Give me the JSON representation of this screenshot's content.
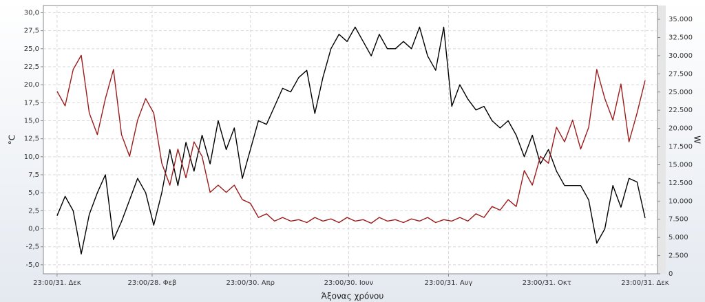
{
  "chart_data": {
    "type": "line",
    "xlabel": "Άξονας χρόνου",
    "ylabel": "°C",
    "y2label": "W",
    "xlim": [
      -8.5,
      372.7
    ],
    "xticks": [
      {
        "value": 0,
        "label": "23:00/31. Δεκ"
      },
      {
        "value": 59,
        "label": "23:00/28. Φεβ"
      },
      {
        "value": 120,
        "label": "23:00/30. Απρ"
      },
      {
        "value": 181,
        "label": "23:00/30. Ιουν"
      },
      {
        "value": 243,
        "label": "23:00/31. Αυγ"
      },
      {
        "value": 304,
        "label": "23:00/31. Οκτ"
      },
      {
        "value": 365,
        "label": "23:00/31. Δεκ"
      }
    ],
    "ylim": [
      -6.25,
      31
    ],
    "yticks": [
      {
        "value": -5,
        "label": "-5,0"
      },
      {
        "value": -2.5,
        "label": "-2,5"
      },
      {
        "value": 0,
        "label": "0,0"
      },
      {
        "value": 2.5,
        "label": "2,5"
      },
      {
        "value": 5,
        "label": "5,0"
      },
      {
        "value": 7.5,
        "label": "7,5"
      },
      {
        "value": 10,
        "label": "10,0"
      },
      {
        "value": 12.5,
        "label": "12,5"
      },
      {
        "value": 15,
        "label": "15,0"
      },
      {
        "value": 17.5,
        "label": "17,5"
      },
      {
        "value": 20,
        "label": "20,0"
      },
      {
        "value": 22.5,
        "label": "22,5"
      },
      {
        "value": 25,
        "label": "25,0"
      },
      {
        "value": 27.5,
        "label": "27,5"
      },
      {
        "value": 30,
        "label": "30,0"
      }
    ],
    "y2lim": [
      0,
      36900
    ],
    "y2ticks": [
      0,
      {
        "value": 2500,
        "label": "2.500"
      },
      {
        "value": 5000,
        "label": "5.000"
      },
      {
        "value": 7500,
        "label": "7.500"
      },
      {
        "value": 10000,
        "label": "10.000"
      },
      {
        "value": 12500,
        "label": "12.500"
      },
      {
        "value": 15000,
        "label": "15.000"
      },
      {
        "value": 17500,
        "label": "17.500"
      },
      {
        "value": 20000,
        "label": "20.000"
      },
      {
        "value": 22500,
        "label": "22.500"
      },
      {
        "value": 25000,
        "label": "25.000"
      },
      {
        "value": 27500,
        "label": "27.500"
      },
      {
        "value": 30000,
        "label": "30.000"
      },
      {
        "value": 32500,
        "label": "32.500"
      },
      {
        "value": 35000,
        "label": "35.000"
      }
    ],
    "grid": true,
    "x": [
      0,
      5,
      10,
      15,
      20,
      25,
      30,
      35,
      40,
      45,
      50,
      55,
      60,
      65,
      70,
      75,
      80,
      85,
      90,
      95,
      100,
      105,
      110,
      115,
      120,
      125,
      130,
      135,
      140,
      145,
      150,
      155,
      160,
      165,
      170,
      175,
      180,
      185,
      190,
      195,
      200,
      205,
      210,
      215,
      220,
      225,
      230,
      235,
      240,
      245,
      250,
      255,
      260,
      265,
      270,
      275,
      280,
      285,
      290,
      295,
      300,
      305,
      310,
      315,
      320,
      325,
      330,
      335,
      340,
      345,
      350,
      355,
      360,
      365
    ],
    "series": [
      {
        "color": "#000000",
        "values": [
          1.8,
          4.5,
          2.5,
          -3.5,
          2,
          5,
          7.5,
          -1.5,
          1,
          4,
          7,
          5,
          0.5,
          5,
          11,
          6,
          12,
          8,
          13,
          9,
          15,
          11,
          14,
          7,
          11,
          15,
          14.5,
          17,
          19.5,
          19,
          21,
          22,
          16,
          21,
          25,
          27,
          26,
          28,
          26,
          24,
          27,
          25,
          25,
          26,
          25,
          28,
          24,
          22,
          28,
          17,
          20,
          18,
          16.5,
          17,
          15,
          14,
          15,
          13,
          10,
          13,
          9,
          11,
          8,
          6,
          6,
          6,
          4,
          -2,
          0,
          6,
          3,
          7,
          6.5,
          1.5
        ]
      },
      {
        "color": "#9b1c1c",
        "axis": "y2",
        "values": [
          25100,
          23100,
          28100,
          30050,
          22100,
          19150,
          24100,
          28100,
          19150,
          16150,
          21150,
          24100,
          22100,
          15200,
          12200,
          17150,
          13200,
          18150,
          16150,
          11200,
          12200,
          11200,
          12200,
          10200,
          9700,
          7750,
          8250,
          7250,
          7750,
          7250,
          7450,
          7050,
          7750,
          7250,
          7550,
          7050,
          7750,
          7250,
          7450,
          6950,
          7750,
          7250,
          7450,
          7050,
          7550,
          7250,
          7750,
          7050,
          7450,
          7250,
          7750,
          7250,
          8250,
          7750,
          9250,
          8750,
          10200,
          9250,
          14200,
          12200,
          16150,
          15200,
          20150,
          18150,
          21150,
          17150,
          20150,
          28100,
          24100,
          21150,
          26100,
          18150,
          22100,
          26600
        ]
      }
    ]
  }
}
